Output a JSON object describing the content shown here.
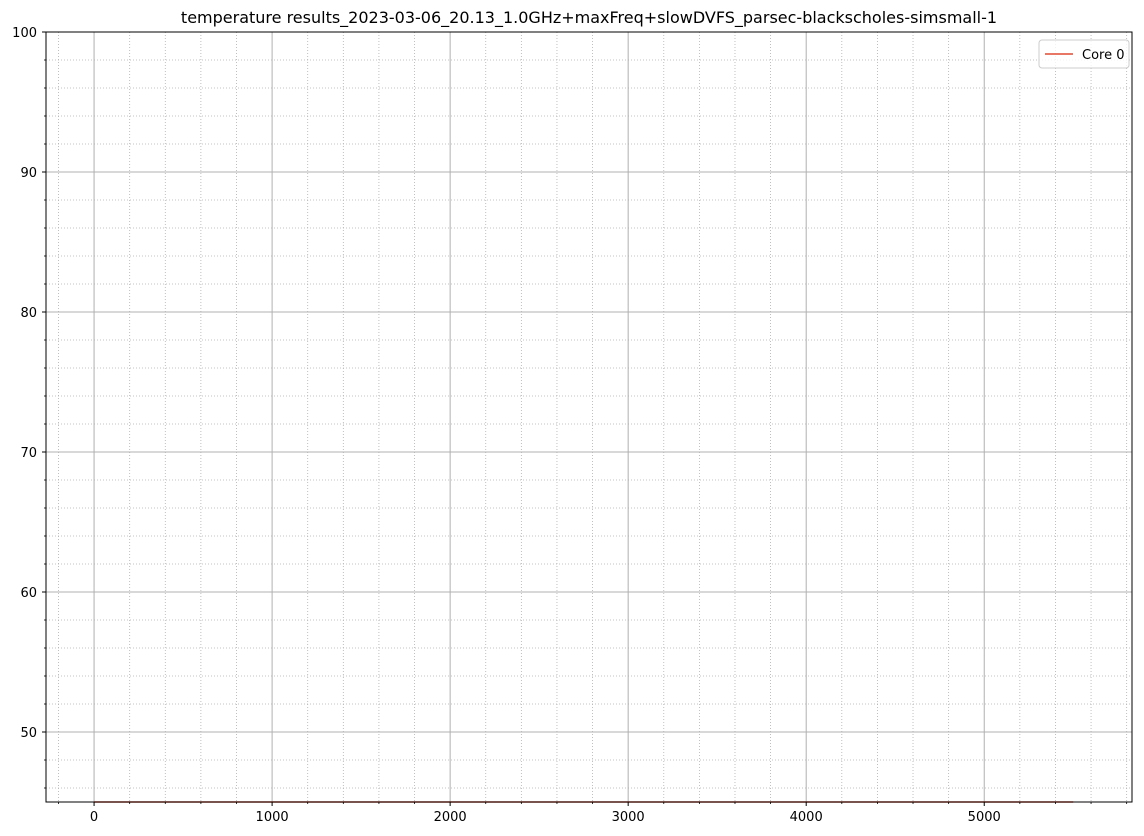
{
  "chart_data": {
    "type": "line",
    "title": "temperature results_2023-03-06_20.13_1.0GHz+maxFreq+slowDVFS_parsec-blackscholes-simsmall-1",
    "xlabel": "",
    "ylabel": "",
    "xlim": [
      -270,
      5830
    ],
    "ylim": [
      45,
      100
    ],
    "x_ticks": [
      0,
      1000,
      2000,
      3000,
      4000,
      5000
    ],
    "x_tick_labels": [
      "0",
      "1000",
      "2000",
      "3000",
      "4000",
      "5000"
    ],
    "y_ticks": [
      50,
      60,
      70,
      80,
      90,
      100
    ],
    "y_tick_labels": [
      "50",
      "60",
      "70",
      "80",
      "90",
      "100"
    ],
    "x_minor_step": 200,
    "y_minor_step": 2,
    "grid": true,
    "legend_position": "upper right",
    "series": [
      {
        "name": "Core 0",
        "color": "#e24a33",
        "x": [
          0,
          5500
        ],
        "y": [
          45,
          45
        ]
      }
    ]
  }
}
